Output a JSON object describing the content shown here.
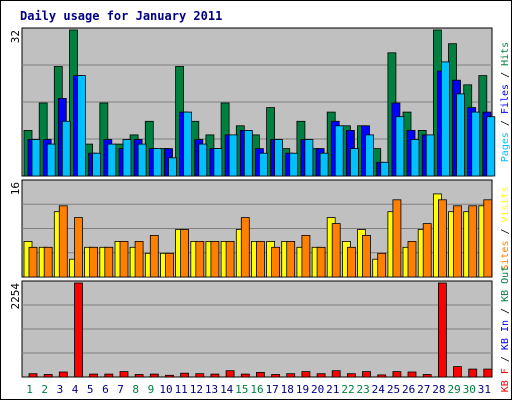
{
  "chart_data": {
    "type": "bar",
    "title": "Daily usage for January 2011",
    "days": [
      "1",
      "2",
      "3",
      "4",
      "5",
      "6",
      "7",
      "8",
      "9",
      "10",
      "11",
      "12",
      "13",
      "14",
      "15",
      "16",
      "17",
      "18",
      "19",
      "20",
      "21",
      "22",
      "23",
      "24",
      "25",
      "26",
      "27",
      "28",
      "29",
      "30",
      "31"
    ],
    "weekend_days": [
      "1",
      "2",
      "8",
      "9",
      "15",
      "16",
      "22",
      "23",
      "29",
      "30"
    ],
    "panels": [
      {
        "id": "top",
        "ymax": 32,
        "ymax_label": "32",
        "side_labels": [
          {
            "text": "Pages",
            "color": "#00c0ff"
          },
          {
            "text": " / ",
            "color": "#000000"
          },
          {
            "text": "Files",
            "color": "#0000ff"
          },
          {
            "text": " / ",
            "color": "#000000"
          },
          {
            "text": "Hits",
            "color": "#008040"
          }
        ],
        "series": [
          {
            "name": "Hits",
            "color": "#008040",
            "offset": 0,
            "values": [
              10,
              16,
              24,
              32,
              7,
              16,
              7,
              9,
              12,
              6,
              24,
              12,
              9,
              16,
              11,
              9,
              15,
              6,
              12,
              6,
              14,
              11,
              11,
              6,
              27,
              14,
              10,
              32,
              29,
              20,
              22
            ]
          },
          {
            "name": "Files",
            "color": "#0000ff",
            "offset": 4,
            "values": [
              8,
              8,
              17,
              22,
              5,
              8,
              6,
              8,
              6,
              6,
              14,
              8,
              6,
              9,
              10,
              6,
              8,
              5,
              8,
              6,
              12,
              10,
              11,
              3,
              16,
              10,
              9,
              23,
              21,
              15,
              14
            ]
          },
          {
            "name": "Pages",
            "color": "#00c0ff",
            "offset": 8,
            "values": [
              8,
              7,
              12,
              22,
              5,
              7,
              8,
              7,
              6,
              4,
              14,
              7,
              6,
              9,
              10,
              5,
              8,
              5,
              8,
              5,
              11,
              6,
              9,
              3,
              13,
              8,
              9,
              25,
              18,
              14,
              13
            ]
          }
        ]
      },
      {
        "id": "mid",
        "ymax": 16,
        "ymax_label": "16",
        "side_labels": [
          {
            "text": "Sites",
            "color": "#ff8000"
          },
          {
            "text": " / ",
            "color": "#000000"
          },
          {
            "text": "Visits",
            "color": "#ffff00"
          }
        ],
        "series": [
          {
            "name": "Visits",
            "color": "#ffff00",
            "offset": 0,
            "values": [
              6,
              5,
              11,
              3,
              5,
              5,
              6,
              5,
              4,
              4,
              8,
              6,
              6,
              6,
              8,
              6,
              6,
              6,
              5,
              5,
              10,
              6,
              8,
              3,
              11,
              5,
              8,
              14,
              11,
              11,
              12
            ]
          },
          {
            "name": "Sites",
            "color": "#ff8000",
            "offset": 5,
            "values": [
              5,
              5,
              12,
              10,
              5,
              5,
              6,
              6,
              7,
              4,
              8,
              6,
              6,
              6,
              10,
              6,
              5,
              6,
              7,
              5,
              9,
              5,
              7,
              4,
              13,
              6,
              9,
              13,
              12,
              12,
              13
            ]
          }
        ]
      },
      {
        "id": "bot",
        "ymax": 2254,
        "ymax_label": "2254",
        "side_labels": [
          {
            "text": "KB F",
            "color": "#ff0000"
          },
          {
            "text": " / ",
            "color": "#000000"
          },
          {
            "text": "KB In",
            "color": "#0000ff"
          },
          {
            "text": " / ",
            "color": "#000000"
          },
          {
            "text": "KB Out",
            "color": "#008040"
          }
        ],
        "series": [
          {
            "name": "KB F",
            "color": "#ff0000",
            "offset": 5,
            "values": [
              80,
              60,
              120,
              2254,
              70,
              70,
              130,
              60,
              70,
              40,
              90,
              80,
              70,
              150,
              70,
              110,
              60,
              80,
              130,
              80,
              150,
              80,
              130,
              50,
              130,
              120,
              60,
              2254,
              250,
              190,
              190
            ]
          }
        ]
      }
    ],
    "colors": {
      "frame_bg": "#ffffff",
      "plot_bg": "#c0c0c0",
      "gridline": "#808080",
      "weekday_label": "#000080",
      "weekend_label": "#008040",
      "title": "#000080"
    }
  }
}
